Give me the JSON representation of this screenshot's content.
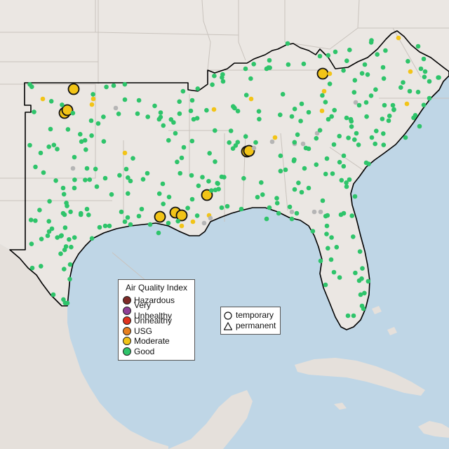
{
  "map": {
    "colors": {
      "water": "#bfd6e6",
      "land": "#ebe7e3",
      "state_border": "#c9c3bd",
      "region_outline": "#000000",
      "hazardous": "#7e2b28",
      "very_unhealthy": "#8f3f97",
      "unhealthy": "#e0331f",
      "usg": "#e8801f",
      "moderate": "#f2c417",
      "good": "#2ec46a",
      "no_data": "#b5b5b5"
    }
  },
  "aqi_legend": {
    "title": "Air Quality Index",
    "items": [
      {
        "label": "Hazardous",
        "color": "#7e2b28"
      },
      {
        "label": "Very Unhealthy",
        "color": "#8f3f97"
      },
      {
        "label": "Unhealthy",
        "color": "#e0331f"
      },
      {
        "label": "USG",
        "color": "#e8801f"
      },
      {
        "label": "Moderate",
        "color": "#f2c417"
      },
      {
        "label": "Good",
        "color": "#2ec46a"
      }
    ]
  },
  "monitor_legend": {
    "temporary_label": "temporary",
    "permanent_label": "permanent",
    "temporary_icon": "circle-icon",
    "permanent_icon": "triangle-icon"
  },
  "monitors": {
    "temporary_moderate_count": 10,
    "permanent_moderate_count": 17,
    "permanent_good_count": 330,
    "permanent_no_data_count": 14
  }
}
